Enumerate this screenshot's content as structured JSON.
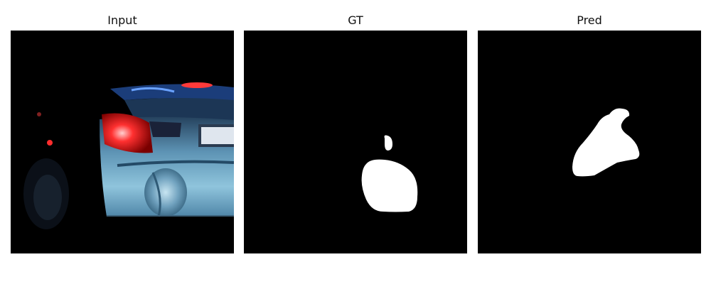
{
  "panels": [
    {
      "title": "Input"
    },
    {
      "title": "GT"
    },
    {
      "title": "Pred"
    }
  ],
  "colors": {
    "background": "#000000",
    "mask": "#ffffff",
    "car_body": "#6fa4c0",
    "tail_light": "#ff2a2a"
  },
  "icons": [
    "car-photo",
    "ground-truth-mask",
    "prediction-mask"
  ]
}
